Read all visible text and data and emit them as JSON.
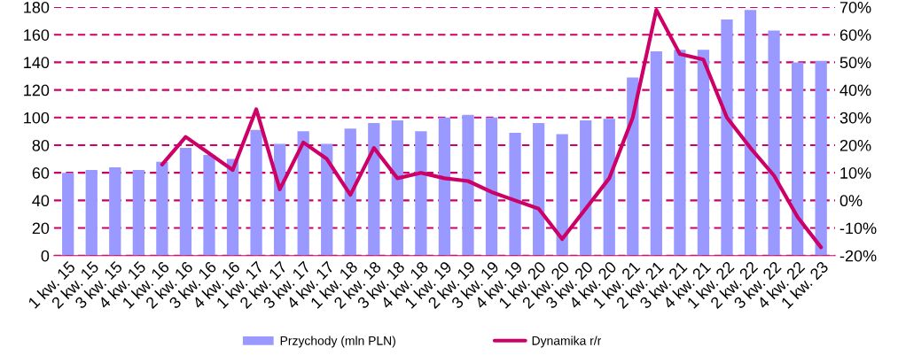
{
  "chart_data": {
    "type": "bar",
    "categories": [
      "1 kw. 15",
      "2 kw. 15",
      "3 kw. 15",
      "4 kw. 15",
      "1 kw. 16",
      "2 kw. 16",
      "3 kw. 16",
      "4 kw. 16",
      "1 kw. 17",
      "2 kw. 17",
      "3 kw. 17",
      "4 kw. 17",
      "1 kw. 18",
      "2 kw. 18",
      "3 kw. 18",
      "4 kw. 18",
      "1 kw. 19",
      "2 kw. 19",
      "3 kw. 19",
      "4 kw. 19",
      "1 kw. 20",
      "2 kw. 20",
      "3 kw. 20",
      "4 kw. 20",
      "1 kw. 21",
      "2 kw. 21",
      "3 kw. 21",
      "4 kw. 21",
      "1 kw. 22",
      "2 kw. 22",
      "3 kw. 22",
      "4 kw. 22",
      "1 kw. 23"
    ],
    "series": [
      {
        "name": "Przychody (mln PLN)",
        "color": "#9999ff",
        "values": [
          60,
          62,
          64,
          62,
          68,
          78,
          73,
          70,
          91,
          81,
          90,
          81,
          92,
          96,
          98,
          90,
          100,
          102,
          100,
          89,
          96,
          88,
          98,
          99,
          129,
          148,
          149,
          149,
          171,
          178,
          163,
          140,
          141
        ]
      },
      {
        "name": "Dynamika r/r",
        "type": "line",
        "axis": "y2",
        "color": "#cc0066",
        "values": [
          null,
          null,
          null,
          null,
          13,
          23,
          17,
          11,
          33,
          4,
          21,
          15,
          2,
          19,
          8,
          10,
          8,
          7,
          3,
          0,
          -3,
          -14,
          -3,
          8,
          30,
          69,
          53,
          51,
          30,
          19,
          9,
          -6,
          -17
        ]
      }
    ],
    "ylim": [
      0,
      180
    ],
    "yticks": [
      0,
      20,
      40,
      60,
      80,
      100,
      120,
      140,
      160,
      180
    ],
    "y2lim": [
      -20,
      70
    ],
    "y2ticks": [
      {
        "value": -20,
        "label": "-20%"
      },
      {
        "value": -10,
        "label": "-10%"
      },
      {
        "value": 0,
        "label": "0%"
      },
      {
        "value": 10,
        "label": "10%"
      },
      {
        "value": 20,
        "label": "20%"
      },
      {
        "value": 30,
        "label": "30%"
      },
      {
        "value": 40,
        "label": "40%"
      },
      {
        "value": 50,
        "label": "50%"
      },
      {
        "value": 60,
        "label": "60%"
      },
      {
        "value": 70,
        "label": "70%"
      }
    ],
    "grid": "y",
    "legend": "bottom",
    "marker": "none",
    "line_style": "solid"
  }
}
